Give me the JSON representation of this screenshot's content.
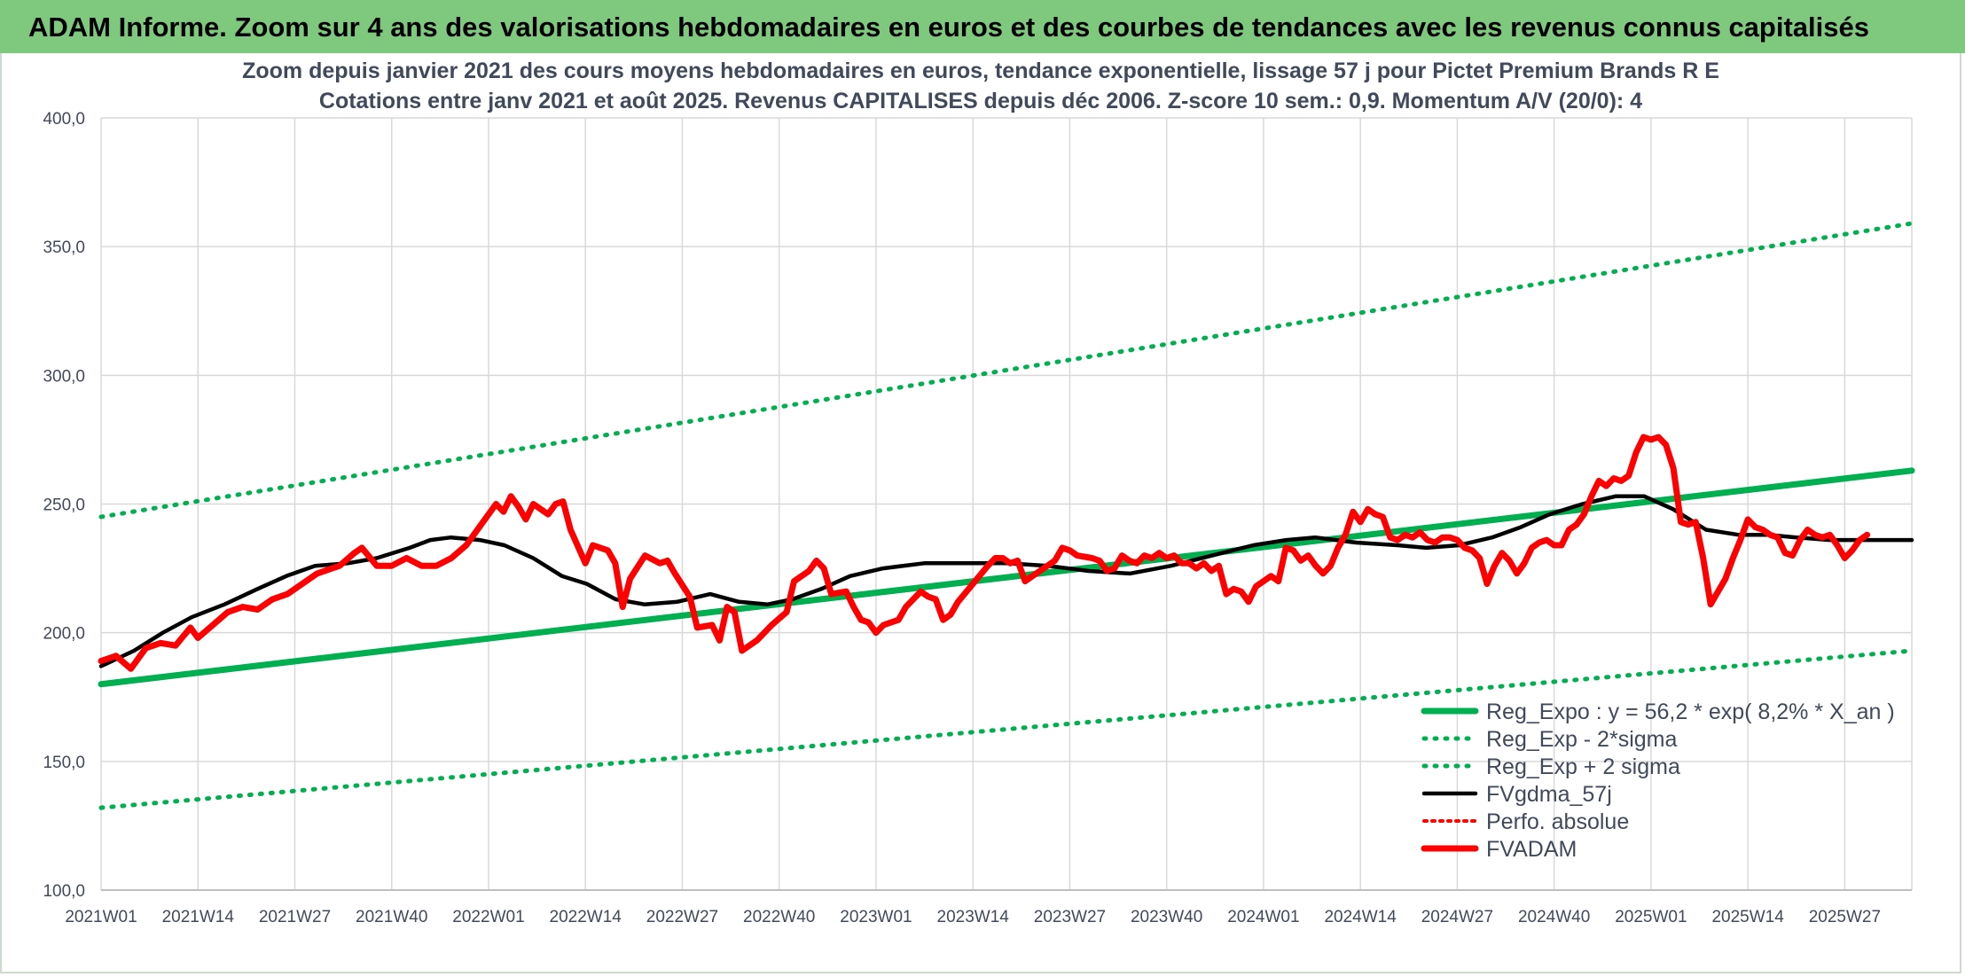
{
  "banner": {
    "title": "ADAM Informe. Zoom sur 4 ans des valorisations hebdomadaires en euros et des courbes de tendances avec les revenus connus capitalisés"
  },
  "chart_data": {
    "type": "line",
    "title_line1": "Zoom depuis janvier 2021 des cours moyens hebdomadaires en euros, tendance exponentielle, lissage 57 j pour Pictet Premium Brands R E",
    "title_line2": "Cotations entre janv 2021 et août 2025. Revenus CAPITALISES depuis déc 2006. Z-score 10 sem.: 0,9. Momentum A/V (20/0): 4",
    "ylim": [
      100,
      400
    ],
    "y_ticks": [
      "100,0",
      "150,0",
      "200,0",
      "250,0",
      "300,0",
      "350,0",
      "400,0"
    ],
    "y_tick_values": [
      100,
      150,
      200,
      250,
      300,
      350,
      400
    ],
    "x_ticks": [
      "2021W01",
      "2021W14",
      "2021W27",
      "2021W40",
      "2022W01",
      "2022W14",
      "2022W27",
      "2022W40",
      "2023W01",
      "2023W14",
      "2023W27",
      "2023W40",
      "2024W01",
      "2024W14",
      "2024W27",
      "2024W40",
      "2025W01",
      "2025W14",
      "2025W27"
    ],
    "x_weeks_total": 243,
    "grid": true,
    "legend_position": "bottom-right",
    "colors": {
      "green": "#00b050",
      "black": "#000000",
      "red": "#ff0000",
      "grid": "#d9d9d9",
      "text": "#404a5a"
    },
    "series": [
      {
        "name": "Reg_Expo : y = 56,2 * exp( 8,2% * X_an )",
        "style": "solid-green",
        "points": [
          [
            0,
            180
          ],
          [
            243,
            263
          ]
        ]
      },
      {
        "name": "Reg_Exp - 2*sigma",
        "style": "dotted-green",
        "points": [
          [
            0,
            132
          ],
          [
            243,
            193
          ]
        ]
      },
      {
        "name": "Reg_Exp + 2 sigma",
        "style": "dotted-green",
        "points": [
          [
            0,
            245
          ],
          [
            243,
            359
          ]
        ]
      },
      {
        "name": "FVgdma_57j",
        "style": "solid-black",
        "points": [
          [
            0,
            187
          ],
          [
            8,
            193
          ],
          [
            15,
            200
          ],
          [
            22,
            206
          ],
          [
            30,
            211
          ],
          [
            38,
            217
          ],
          [
            45,
            222
          ],
          [
            52,
            226
          ],
          [
            60,
            227
          ],
          [
            67,
            229
          ],
          [
            75,
            233
          ],
          [
            80,
            236
          ],
          [
            85,
            237
          ],
          [
            92,
            236
          ],
          [
            98,
            234
          ],
          [
            105,
            229
          ],
          [
            112,
            222
          ],
          [
            118,
            219
          ],
          [
            125,
            213
          ],
          [
            132,
            211
          ],
          [
            140,
            212
          ],
          [
            148,
            215
          ],
          [
            155,
            212
          ],
          [
            162,
            211
          ],
          [
            168,
            213
          ],
          [
            175,
            217
          ],
          [
            182,
            222
          ],
          [
            190,
            225
          ],
          [
            200,
            227
          ],
          [
            210,
            227
          ],
          [
            220,
            227
          ],
          [
            230,
            226
          ],
          [
            240,
            224
          ],
          [
            250,
            223
          ],
          [
            260,
            226
          ],
          [
            270,
            230
          ],
          [
            280,
            234
          ],
          [
            288,
            236
          ],
          [
            295,
            237
          ],
          [
            305,
            235
          ],
          [
            315,
            234
          ],
          [
            322,
            233
          ],
          [
            330,
            234
          ],
          [
            338,
            237
          ],
          [
            345,
            241
          ],
          [
            352,
            246
          ],
          [
            360,
            250
          ],
          [
            368,
            253
          ],
          [
            375,
            253
          ],
          [
            382,
            248
          ],
          [
            390,
            240
          ],
          [
            398,
            238
          ],
          [
            405,
            238
          ],
          [
            412,
            237
          ],
          [
            420,
            236
          ],
          [
            428,
            236
          ],
          [
            435,
            236
          ],
          [
            440,
            236
          ],
          [
            243,
            236
          ]
        ]
      },
      {
        "name": "Perfo. absolue",
        "style": "dotted-red",
        "points": []
      },
      {
        "name": "FVADAM",
        "style": "solid-red",
        "points": [
          [
            0,
            189
          ],
          [
            2,
            191
          ],
          [
            4,
            186
          ],
          [
            6,
            194
          ],
          [
            8,
            196
          ],
          [
            10,
            195
          ],
          [
            12,
            202
          ],
          [
            13,
            198
          ],
          [
            15,
            203
          ],
          [
            17,
            208
          ],
          [
            19,
            210
          ],
          [
            21,
            209
          ],
          [
            23,
            213
          ],
          [
            25,
            215
          ],
          [
            27,
            219
          ],
          [
            29,
            223
          ],
          [
            31,
            225
          ],
          [
            32,
            226
          ],
          [
            34,
            231
          ],
          [
            35,
            233
          ],
          [
            37,
            226
          ],
          [
            39,
            226
          ],
          [
            41,
            229
          ],
          [
            43,
            226
          ],
          [
            45,
            226
          ],
          [
            47,
            229
          ],
          [
            49,
            234
          ],
          [
            51,
            242
          ],
          [
            53,
            250
          ],
          [
            54,
            247
          ],
          [
            55,
            253
          ],
          [
            56,
            249
          ],
          [
            57,
            244
          ],
          [
            58,
            250
          ],
          [
            60,
            246
          ],
          [
            61,
            250
          ],
          [
            62,
            251
          ],
          [
            63,
            240
          ],
          [
            65,
            227
          ],
          [
            66,
            234
          ],
          [
            68,
            232
          ],
          [
            69,
            227
          ],
          [
            70,
            210
          ],
          [
            71,
            221
          ],
          [
            73,
            230
          ],
          [
            75,
            227
          ],
          [
            76,
            228
          ],
          [
            77,
            223
          ],
          [
            79,
            214
          ],
          [
            80,
            202
          ],
          [
            82,
            203
          ],
          [
            83,
            197
          ],
          [
            84,
            210
          ],
          [
            85,
            208
          ],
          [
            86,
            193
          ],
          [
            88,
            197
          ],
          [
            90,
            203
          ],
          [
            92,
            208
          ],
          [
            93,
            220
          ],
          [
            95,
            224
          ],
          [
            96,
            228
          ],
          [
            97,
            225
          ],
          [
            98,
            215
          ],
          [
            100,
            216
          ],
          [
            101,
            210
          ],
          [
            102,
            205
          ],
          [
            103,
            204
          ],
          [
            104,
            200
          ],
          [
            105,
            203
          ],
          [
            107,
            205
          ],
          [
            108,
            210
          ],
          [
            110,
            216
          ],
          [
            111,
            214
          ],
          [
            112,
            213
          ],
          [
            113,
            205
          ],
          [
            114,
            207
          ],
          [
            115,
            212
          ],
          [
            117,
            219
          ],
          [
            119,
            226
          ],
          [
            120,
            229
          ],
          [
            121,
            229
          ],
          [
            122,
            227
          ],
          [
            123,
            228
          ],
          [
            124,
            220
          ],
          [
            125,
            222
          ],
          [
            126,
            224
          ],
          [
            128,
            228
          ],
          [
            129,
            233
          ],
          [
            130,
            232
          ],
          [
            131,
            230
          ],
          [
            133,
            229
          ],
          [
            134,
            228
          ],
          [
            135,
            224
          ],
          [
            136,
            225
          ],
          [
            137,
            230
          ],
          [
            138,
            228
          ],
          [
            139,
            227
          ],
          [
            140,
            230
          ],
          [
            141,
            229
          ],
          [
            142,
            231
          ],
          [
            143,
            229
          ],
          [
            144,
            230
          ],
          [
            145,
            227
          ],
          [
            146,
            227
          ],
          [
            147,
            225
          ],
          [
            148,
            227
          ],
          [
            149,
            224
          ],
          [
            150,
            226
          ],
          [
            151,
            215
          ],
          [
            152,
            217
          ],
          [
            153,
            216
          ],
          [
            154,
            212
          ],
          [
            155,
            218
          ],
          [
            156,
            220
          ],
          [
            157,
            222
          ],
          [
            158,
            220
          ],
          [
            159,
            233
          ],
          [
            160,
            232
          ],
          [
            161,
            228
          ],
          [
            162,
            230
          ],
          [
            163,
            226
          ],
          [
            164,
            223
          ],
          [
            165,
            226
          ],
          [
            166,
            233
          ],
          [
            167,
            238
          ],
          [
            168,
            247
          ],
          [
            169,
            243
          ],
          [
            170,
            248
          ],
          [
            171,
            246
          ],
          [
            172,
            245
          ],
          [
            173,
            237
          ],
          [
            174,
            236
          ],
          [
            175,
            238
          ],
          [
            176,
            237
          ],
          [
            177,
            239
          ],
          [
            178,
            236
          ],
          [
            179,
            235
          ],
          [
            180,
            237
          ],
          [
            181,
            237
          ],
          [
            182,
            236
          ],
          [
            183,
            233
          ],
          [
            184,
            232
          ],
          [
            185,
            229
          ],
          [
            186,
            219
          ],
          [
            187,
            226
          ],
          [
            188,
            231
          ],
          [
            189,
            228
          ],
          [
            190,
            223
          ],
          [
            191,
            227
          ],
          [
            192,
            233
          ],
          [
            193,
            235
          ],
          [
            194,
            236
          ],
          [
            195,
            234
          ],
          [
            196,
            234
          ],
          [
            197,
            240
          ],
          [
            198,
            242
          ],
          [
            199,
            246
          ],
          [
            200,
            253
          ],
          [
            201,
            259
          ],
          [
            202,
            257
          ],
          [
            203,
            260
          ],
          [
            204,
            259
          ],
          [
            205,
            261
          ],
          [
            206,
            270
          ],
          [
            207,
            276
          ],
          [
            208,
            275
          ],
          [
            209,
            276
          ],
          [
            210,
            273
          ],
          [
            211,
            264
          ],
          [
            212,
            243
          ],
          [
            213,
            242
          ],
          [
            214,
            243
          ],
          [
            215,
            229
          ],
          [
            216,
            211
          ],
          [
            217,
            216
          ],
          [
            218,
            221
          ],
          [
            219,
            229
          ],
          [
            220,
            236
          ],
          [
            221,
            244
          ],
          [
            222,
            241
          ],
          [
            223,
            240
          ],
          [
            224,
            238
          ],
          [
            225,
            237
          ],
          [
            226,
            231
          ],
          [
            227,
            230
          ],
          [
            228,
            236
          ],
          [
            229,
            240
          ],
          [
            230,
            238
          ],
          [
            231,
            237
          ],
          [
            232,
            238
          ],
          [
            233,
            234
          ],
          [
            234,
            229
          ],
          [
            235,
            232
          ],
          [
            236,
            236
          ],
          [
            237,
            238
          ]
        ]
      }
    ]
  }
}
